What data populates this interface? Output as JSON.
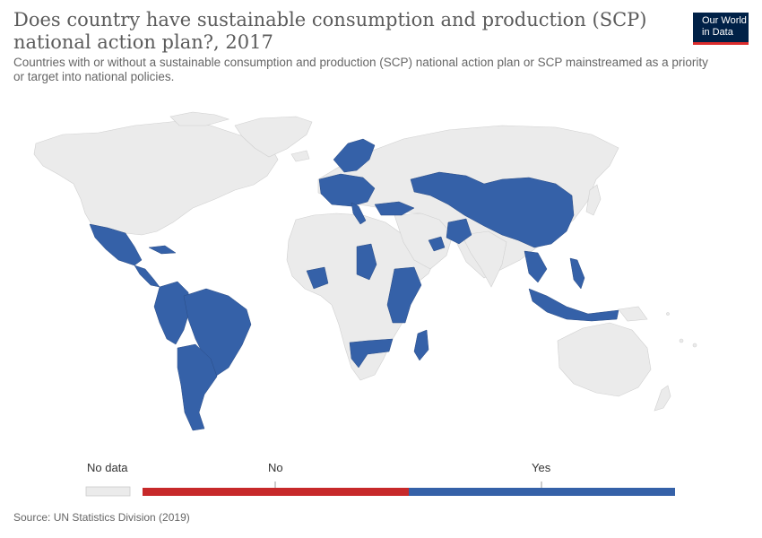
{
  "header": {
    "title": "Does country have sustainable consumption and production (SCP) national action plan?, 2017",
    "subtitle": "Countries with or without a sustainable consumption and production (SCP) national action plan or SCP mainstreamed as a priority or target into national policies."
  },
  "logo": {
    "line1": "Our World",
    "line2": "in Data"
  },
  "legend": {
    "nodata_label": "No data",
    "categories": [
      {
        "label": "No",
        "color": "#c7292a"
      },
      {
        "label": "Yes",
        "color": "#3561a8"
      }
    ],
    "nodata_color": "#ebebeb"
  },
  "source": "Source: UN Statistics Division (2019)",
  "map": {
    "yes_regions": [
      "Mexico",
      "Central America",
      "Cuba",
      "Colombia",
      "Ecuador",
      "Peru",
      "Brazil",
      "Argentina",
      "Chile",
      "Uruguay",
      "Western Europe",
      "Scandinavia",
      "Italy",
      "Turkey",
      "Russia",
      "Kazakhstan",
      "China",
      "Mongolia",
      "Pakistan",
      "Thailand",
      "Cambodia",
      "Philippines",
      "Indonesia",
      "Ethiopia",
      "Kenya",
      "Tanzania",
      "Sudan",
      "Ghana",
      "Burkina Faso",
      "Namibia",
      "Zimbabwe",
      "Madagascar",
      "Oman"
    ]
  }
}
